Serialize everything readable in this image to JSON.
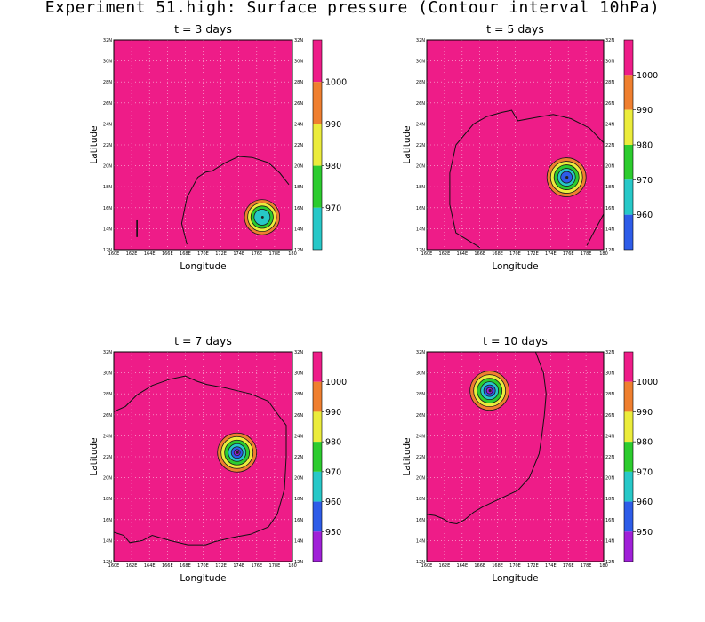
{
  "title": "Experiment 51.high: Surface pressure (Contour interval 10hPa)",
  "chart_data": [
    {
      "type": "contour",
      "title": "t = 3 days",
      "xlabel": "Longitude",
      "ylabel": "Latitude",
      "x_ticks": [
        "160E",
        "162E",
        "164E",
        "166E",
        "168E",
        "170E",
        "172E",
        "174E",
        "176E",
        "178E",
        "180"
      ],
      "y_ticks": [
        "12N",
        "14N",
        "16N",
        "18N",
        "20N",
        "22N",
        "24N",
        "26N",
        "28N",
        "30N",
        "32N"
      ],
      "xlim": [
        160,
        180
      ],
      "ylim": [
        12,
        32
      ],
      "grid": true,
      "background_color": "#ee1c88",
      "colorbar": {
        "labels": [
          "1000",
          "990",
          "980",
          "970"
        ],
        "colors": [
          "#ee1c88",
          "#ef7f2f",
          "#ebec3b",
          "#2ccc2e",
          "#27c8c8"
        ]
      },
      "low_center": {
        "lon": 176.6,
        "lat": 15.1,
        "min_pressure_band": "970"
      },
      "contour_1010": [
        [
          168.2,
          12.5
        ],
        [
          167.6,
          14.5
        ],
        [
          168.2,
          17.0
        ],
        [
          169.4,
          18.9
        ],
        [
          170.3,
          19.4
        ],
        [
          171.0,
          19.5
        ],
        [
          172.5,
          20.3
        ],
        [
          174.0,
          20.9
        ],
        [
          175.5,
          20.8
        ],
        [
          177.3,
          20.3
        ],
        [
          178.6,
          19.3
        ],
        [
          179.6,
          18.2
        ]
      ],
      "tick_mark": {
        "lon": 162.6,
        "lat_from": 13.2,
        "lat_to": 14.8
      }
    },
    {
      "type": "contour",
      "title": "t = 5 days",
      "xlabel": "Longitude",
      "ylabel": "Latitude",
      "x_ticks": [
        "160E",
        "162E",
        "164E",
        "166E",
        "168E",
        "170E",
        "172E",
        "174E",
        "176E",
        "178E",
        "180"
      ],
      "y_ticks": [
        "12N",
        "14N",
        "16N",
        "18N",
        "20N",
        "22N",
        "24N",
        "26N",
        "28N",
        "30N",
        "32N"
      ],
      "xlim": [
        160,
        180
      ],
      "ylim": [
        12,
        32
      ],
      "grid": true,
      "background_color": "#ee1c88",
      "colorbar": {
        "labels": [
          "1000",
          "990",
          "980",
          "970",
          "960"
        ],
        "colors": [
          "#ee1c88",
          "#ef7f2f",
          "#ebec3b",
          "#2ccc2e",
          "#27c8c8",
          "#2e5ce8"
        ]
      },
      "low_center": {
        "lon": 175.8,
        "lat": 18.9,
        "min_pressure_band": "960"
      },
      "contour_1010": [
        [
          166.0,
          12.2
        ],
        [
          163.3,
          13.6
        ],
        [
          162.6,
          16.3
        ],
        [
          162.6,
          19.3
        ],
        [
          163.3,
          22.0
        ],
        [
          165.3,
          24.0
        ],
        [
          166.8,
          24.7
        ],
        [
          168.5,
          25.1
        ],
        [
          169.6,
          25.3
        ],
        [
          170.3,
          24.3
        ],
        [
          172.3,
          24.6
        ],
        [
          174.3,
          24.9
        ],
        [
          176.3,
          24.5
        ],
        [
          178.4,
          23.6
        ],
        [
          180.0,
          22.2
        ]
      ],
      "contour_1010_b": [
        [
          180.0,
          15.4
        ],
        [
          179.1,
          14.0
        ],
        [
          178.1,
          12.4
        ]
      ]
    },
    {
      "type": "contour",
      "title": "t = 7 days",
      "xlabel": "Longitude",
      "ylabel": "Latitude",
      "x_ticks": [
        "160E",
        "162E",
        "164E",
        "166E",
        "168E",
        "170E",
        "172E",
        "174E",
        "176E",
        "178E",
        "180"
      ],
      "y_ticks": [
        "12N",
        "14N",
        "16N",
        "18N",
        "20N",
        "22N",
        "24N",
        "26N",
        "28N",
        "30N",
        "32N"
      ],
      "xlim": [
        160,
        180
      ],
      "ylim": [
        12,
        32
      ],
      "grid": true,
      "background_color": "#ee1c88",
      "colorbar": {
        "labels": [
          "1000",
          "990",
          "980",
          "970",
          "960",
          "950"
        ],
        "colors": [
          "#ee1c88",
          "#ef7f2f",
          "#ebec3b",
          "#2ccc2e",
          "#27c8c8",
          "#2e5ce8",
          "#a020d8"
        ]
      },
      "low_center": {
        "lon": 173.8,
        "lat": 22.4,
        "min_pressure_band": "950"
      },
      "contour_1010": [
        [
          160.0,
          26.3
        ],
        [
          161.3,
          26.8
        ],
        [
          162.6,
          27.9
        ],
        [
          164.3,
          28.8
        ],
        [
          166.3,
          29.4
        ],
        [
          168.0,
          29.7
        ],
        [
          169.3,
          29.2
        ],
        [
          170.4,
          28.9
        ],
        [
          172.3,
          28.6
        ],
        [
          173.8,
          28.3
        ],
        [
          175.3,
          28.0
        ],
        [
          177.3,
          27.3
        ],
        [
          178.4,
          26.0
        ],
        [
          179.3,
          25.0
        ],
        [
          179.3,
          22.0
        ],
        [
          179.1,
          18.9
        ],
        [
          178.3,
          16.5
        ],
        [
          177.3,
          15.3
        ],
        [
          175.3,
          14.6
        ],
        [
          173.3,
          14.3
        ],
        [
          171.3,
          13.9
        ],
        [
          170.3,
          13.6
        ],
        [
          168.3,
          13.6
        ],
        [
          166.3,
          14.0
        ],
        [
          164.3,
          14.5
        ],
        [
          163.2,
          14.0
        ],
        [
          161.8,
          13.8
        ],
        [
          161.1,
          14.5
        ],
        [
          160.0,
          14.8
        ]
      ]
    },
    {
      "type": "contour",
      "title": "t = 10 days",
      "xlabel": "Longitude",
      "ylabel": "Latitude",
      "x_ticks": [
        "160E",
        "162E",
        "164E",
        "166E",
        "168E",
        "170E",
        "172E",
        "174E",
        "176E",
        "178E",
        "180"
      ],
      "y_ticks": [
        "12N",
        "14N",
        "16N",
        "18N",
        "20N",
        "22N",
        "24N",
        "26N",
        "28N",
        "30N",
        "32N"
      ],
      "xlim": [
        160,
        180
      ],
      "ylim": [
        12,
        32
      ],
      "grid": true,
      "background_color": "#ee1c88",
      "colorbar": {
        "labels": [
          "1000",
          "990",
          "980",
          "970",
          "960",
          "950"
        ],
        "colors": [
          "#ee1c88",
          "#ef7f2f",
          "#ebec3b",
          "#2ccc2e",
          "#27c8c8",
          "#2e5ce8",
          "#a020d8"
        ]
      },
      "low_center": {
        "lon": 167.1,
        "lat": 28.3,
        "min_pressure_band": "950"
      },
      "contour_1010": [
        [
          172.3,
          32.0
        ],
        [
          173.2,
          30.0
        ],
        [
          173.5,
          28.0
        ],
        [
          173.3,
          26.0
        ],
        [
          173.0,
          24.0
        ],
        [
          172.7,
          22.3
        ],
        [
          171.6,
          20.0
        ],
        [
          170.3,
          18.8
        ],
        [
          168.3,
          18.0
        ],
        [
          166.3,
          17.2
        ],
        [
          165.3,
          16.7
        ],
        [
          164.3,
          16.0
        ],
        [
          163.4,
          15.6
        ],
        [
          162.6,
          15.7
        ],
        [
          161.8,
          16.1
        ],
        [
          160.9,
          16.4
        ],
        [
          160.0,
          16.5
        ]
      ]
    }
  ]
}
